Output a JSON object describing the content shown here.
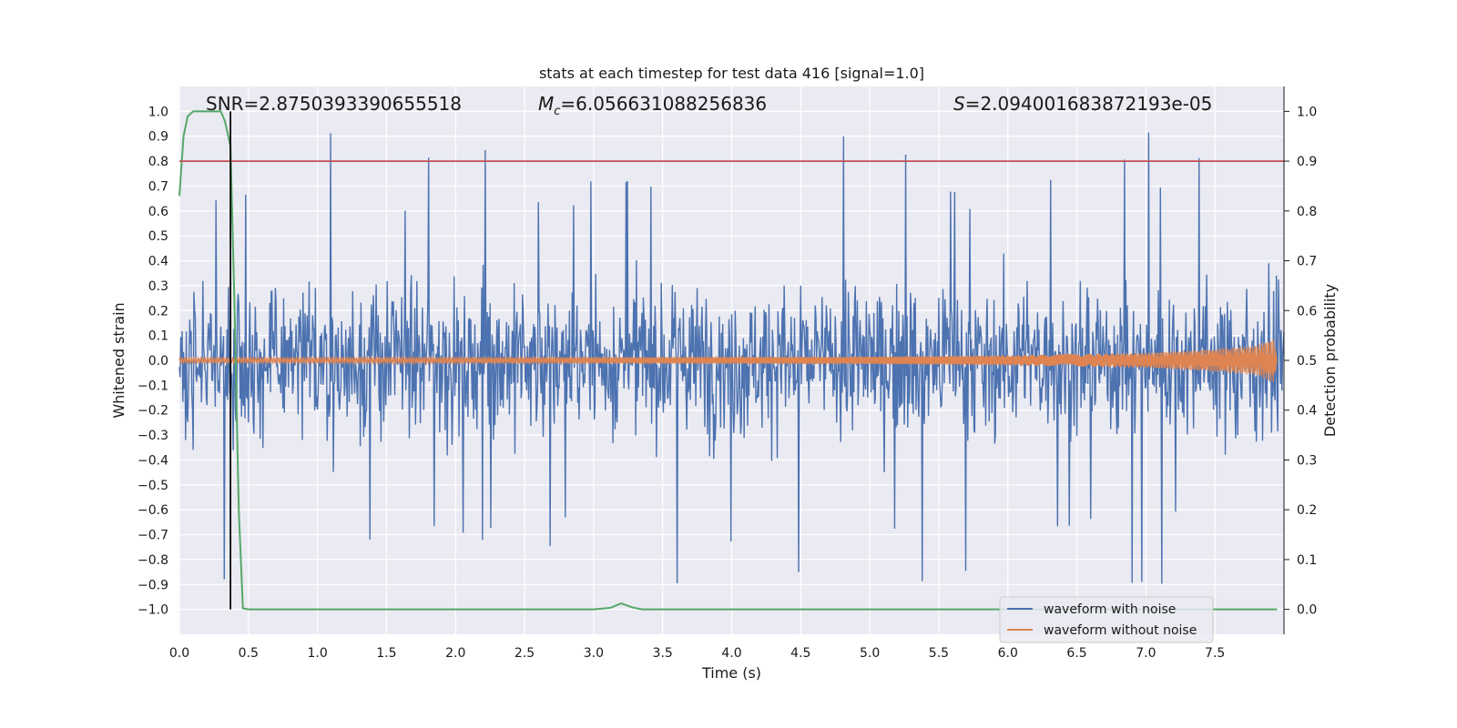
{
  "chart_data": {
    "type": "line",
    "title": "stats at each timestep for test data 416 [signal=1.0]",
    "xlabel": "Time (s)",
    "ylabel_left": "Whitened strain",
    "ylabel_right": "Detection probability",
    "xlim": [
      0.0,
      8.0
    ],
    "ylim_left": [
      -1.1,
      1.1
    ],
    "ylim_right": [
      -0.05,
      1.05
    ],
    "x_ticks": [
      0.0,
      0.5,
      1.0,
      1.5,
      2.0,
      2.5,
      3.0,
      3.5,
      4.0,
      4.5,
      5.0,
      5.5,
      6.0,
      6.5,
      7.0,
      7.5
    ],
    "x_tick_labels": [
      "0.0",
      "0.5",
      "1.0",
      "1.5",
      "2.0",
      "2.5",
      "3.0",
      "3.5",
      "4.0",
      "4.5",
      "5.0",
      "5.5",
      "6.0",
      "6.5",
      "7.0",
      "7.5"
    ],
    "y_left_ticks": [
      1.0,
      0.9,
      0.8,
      0.7,
      0.6,
      0.5,
      0.4,
      0.3,
      0.2,
      0.1,
      0.0,
      -0.1,
      -0.2,
      -0.3,
      -0.4,
      -0.5,
      -0.6,
      -0.7,
      -0.8,
      -0.9,
      -1.0
    ],
    "y_left_tick_labels": [
      "1.0",
      "0.9",
      "0.8",
      "0.7",
      "0.6",
      "0.5",
      "0.4",
      "0.3",
      "0.2",
      "0.1",
      "0.0",
      "−0.1",
      "−0.2",
      "−0.3",
      "−0.4",
      "−0.5",
      "−0.6",
      "−0.7",
      "−0.8",
      "−0.9",
      "−1.0"
    ],
    "y_right_ticks": [
      1.0,
      0.9,
      0.8,
      0.7,
      0.6,
      0.5,
      0.4,
      0.3,
      0.2,
      0.1,
      0.0
    ],
    "y_right_tick_labels": [
      "1.0",
      "0.9",
      "0.8",
      "0.7",
      "0.6",
      "0.5",
      "0.4",
      "0.3",
      "0.2",
      "0.1",
      "0.0"
    ],
    "annotations": {
      "snr": "SNR=2.8750393390655518",
      "mc_symbol": "M",
      "mc_subscript": "c",
      "mc_value": "=6.056631088256836",
      "s_symbol": "S",
      "s_value": "=2.094001683872193e-05"
    },
    "series": [
      {
        "name": "waveform with noise",
        "color": "#4c72b0",
        "axis": "left",
        "duration_s": 8.0,
        "typical_amplitude": 0.45,
        "peak_max": 0.99,
        "peak_min": -1.0
      },
      {
        "name": "waveform without noise",
        "color": "#dd8452",
        "axis": "left",
        "envelope": [
          {
            "x": 0.0,
            "a": 0.01
          },
          {
            "x": 3.0,
            "a": 0.012
          },
          {
            "x": 5.0,
            "a": 0.015
          },
          {
            "x": 6.0,
            "a": 0.02
          },
          {
            "x": 7.0,
            "a": 0.03
          },
          {
            "x": 7.5,
            "a": 0.045
          },
          {
            "x": 7.8,
            "a": 0.06
          },
          {
            "x": 7.93,
            "a": 0.09
          },
          {
            "x": 7.95,
            "a": 0.0
          }
        ]
      },
      {
        "name": "detection probability",
        "color": "#55a868",
        "axis": "right",
        "x": [
          0.0,
          0.03,
          0.06,
          0.1,
          0.15,
          0.2,
          0.25,
          0.3,
          0.33,
          0.37,
          0.4,
          0.43,
          0.46,
          0.5,
          1.0,
          2.0,
          3.0,
          3.12,
          3.2,
          3.28,
          3.35,
          4.0,
          5.0,
          6.0,
          7.0,
          7.95
        ],
        "y": [
          0.83,
          0.95,
          0.99,
          1.0,
          1.0,
          1.0,
          1.0,
          1.0,
          0.98,
          0.93,
          0.6,
          0.2,
          0.002,
          0.0,
          0.0,
          0.0,
          0.0,
          0.003,
          0.012,
          0.004,
          0.0,
          0.0,
          0.0,
          0.0,
          0.0,
          0.0
        ]
      }
    ],
    "threshold": {
      "axis": "right",
      "value": 0.9,
      "color": "#c44e52"
    },
    "marker_line": {
      "x": 0.37,
      "color": "#000000"
    },
    "legend": {
      "position": "lower-right",
      "entries": [
        {
          "label": "waveform with noise",
          "color": "#4c72b0"
        },
        {
          "label": "waveform without noise",
          "color": "#dd8452"
        }
      ]
    },
    "colors": {
      "plot_background": "#eaeaf2",
      "grid": "#ffffff"
    }
  }
}
